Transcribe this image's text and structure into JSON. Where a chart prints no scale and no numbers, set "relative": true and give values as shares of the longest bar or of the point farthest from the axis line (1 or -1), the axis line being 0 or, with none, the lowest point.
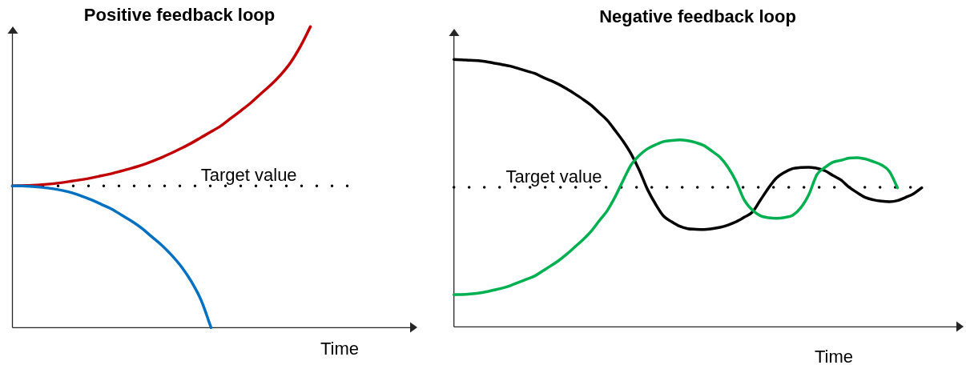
{
  "chart_data": [
    {
      "type": "line",
      "title": "Positive feedback loop",
      "xlabel": "Time",
      "relative": true,
      "line_style": "solid",
      "categories": [
        null,
        null,
        null,
        null,
        null,
        null,
        null,
        null,
        null,
        null,
        null,
        null,
        null,
        null,
        null,
        null,
        null,
        null,
        null,
        null,
        null,
        null,
        null,
        null,
        null,
        null,
        null,
        null,
        null,
        null,
        null,
        null,
        null,
        null,
        null
      ],
      "series": [
        {
          "color": "#c00000",
          "values": [
            0.471,
            0.472,
            0.473,
            0.475,
            0.478,
            0.482,
            0.487,
            0.492,
            0.498,
            0.505,
            0.512,
            0.521,
            0.53,
            0.54,
            0.552,
            0.565,
            0.58,
            0.596,
            0.613,
            0.632,
            0.651,
            0.671,
            0.696,
            0.721,
            0.747,
            0.777,
            0.806,
            0.84,
            0.881,
            0.935,
            1,
            null,
            null,
            null,
            null
          ]
        },
        {
          "color": "#0070c0",
          "values": [
            0.471,
            0.471,
            0.469,
            0.466,
            0.462,
            0.456,
            0.448,
            0.437,
            0.424,
            0.409,
            0.394,
            0.374,
            0.354,
            0.331,
            0.303,
            0.275,
            0.242,
            0.203,
            0.154,
            0.091,
            0,
            null,
            null,
            null,
            null,
            null,
            null,
            null,
            null,
            null,
            null,
            null,
            null,
            null,
            null
          ]
        }
      ],
      "ref_lines": [
        {
          "axis": "y",
          "value": 0.471,
          "label": "Target value",
          "line_style": "dotted",
          "color": "#000000"
        }
      ]
    },
    {
      "type": "line",
      "title": "Negative feedback loop",
      "xlabel": "Time",
      "relative": true,
      "line_style": "solid",
      "categories": [
        null,
        null,
        null,
        null,
        null,
        null,
        null,
        null,
        null,
        null,
        null,
        null,
        null,
        null,
        null,
        null,
        null,
        null,
        null,
        null,
        null,
        null,
        null,
        null,
        null,
        null,
        null,
        null,
        null,
        null,
        null,
        null,
        null,
        null,
        null,
        null,
        null,
        null,
        null,
        null,
        null,
        null,
        null,
        null,
        null,
        null,
        null,
        null,
        null,
        null,
        null,
        null,
        null,
        null,
        null,
        null,
        null,
        null,
        null
      ],
      "series": [
        {
          "color": "#000000",
          "values": [
            1,
            0.999,
            0.997,
            0.996,
            0.992,
            0.986,
            0.981,
            0.975,
            0.966,
            0.957,
            0.948,
            0.934,
            0.921,
            0.907,
            0.89,
            0.871,
            0.851,
            0.829,
            0.801,
            0.773,
            0.734,
            0.693,
            0.645,
            0.585,
            0.514,
            0.459,
            0.414,
            0.393,
            0.376,
            0.367,
            0.365,
            0.364,
            0.367,
            0.372,
            0.381,
            0.393,
            0.41,
            0.429,
            0.474,
            0.519,
            0.557,
            0.578,
            0.592,
            0.596,
            0.597,
            0.593,
            0.584,
            0.566,
            0.549,
            0.522,
            0.502,
            0.484,
            0.475,
            0.47,
            0.468,
            0.472,
            0.484,
            0.498,
            0.52
          ]
        },
        {
          "color": "#00b050",
          "values": [
            0.12,
            0.121,
            0.123,
            0.126,
            0.131,
            0.138,
            0.145,
            0.154,
            0.166,
            0.178,
            0.19,
            0.209,
            0.228,
            0.248,
            0.272,
            0.299,
            0.326,
            0.357,
            0.396,
            0.434,
            0.487,
            0.549,
            0.607,
            0.642,
            0.666,
            0.681,
            0.693,
            0.697,
            0.699,
            0.696,
            0.689,
            0.678,
            0.657,
            0.634,
            0.596,
            0.543,
            0.474,
            0.437,
            0.415,
            0.408,
            0.406,
            0.409,
            0.417,
            0.445,
            0.494,
            0.569,
            0.596,
            0.616,
            0.623,
            0.631,
            0.633,
            0.628,
            0.618,
            0.606,
            0.581,
            0.52,
            null,
            null,
            null
          ]
        }
      ],
      "ref_lines": [
        {
          "axis": "y",
          "value": 0.522,
          "label": "Target value",
          "line_style": "dotted",
          "color": "#000000"
        }
      ]
    }
  ]
}
